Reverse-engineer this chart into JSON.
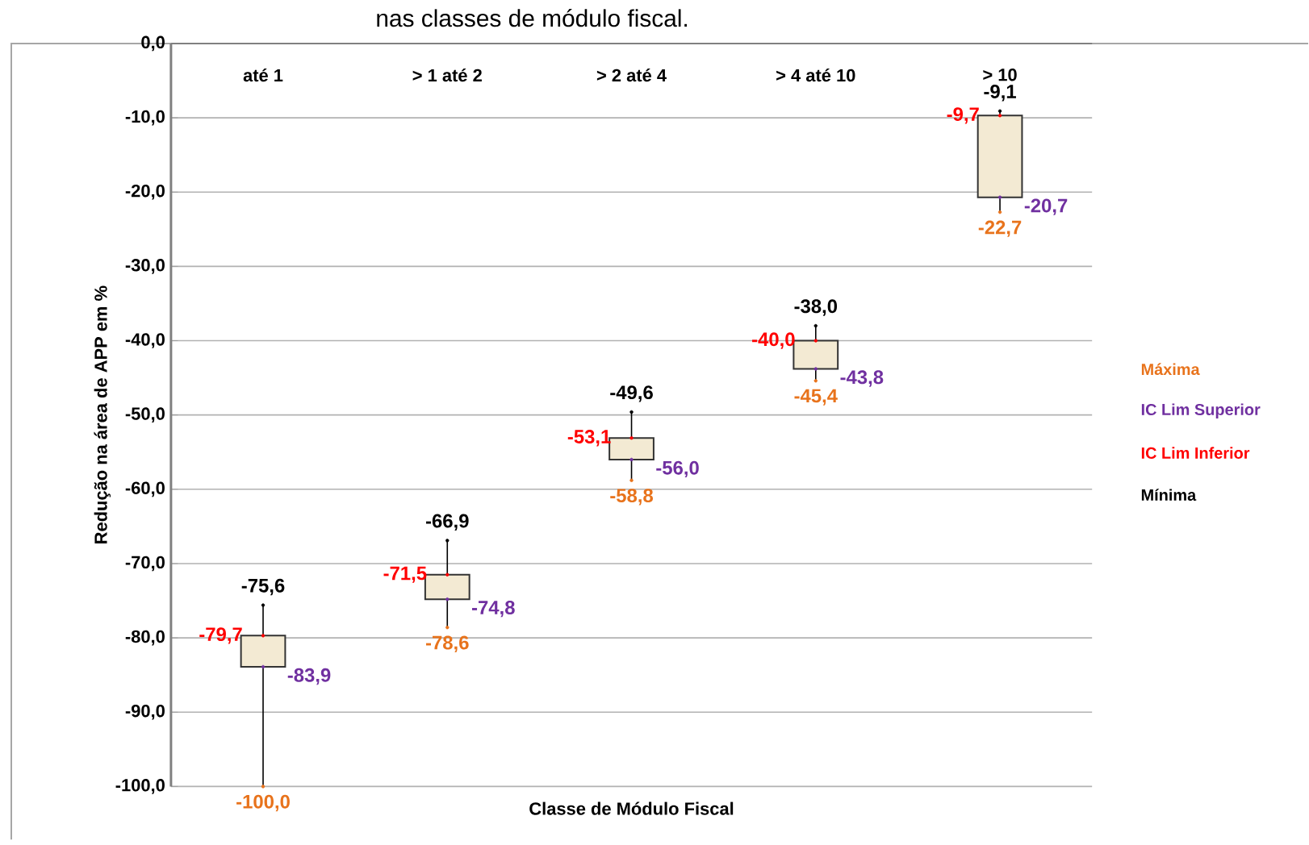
{
  "chart_data": {
    "type": "candlestick",
    "title": "nas classes de módulo fiscal.",
    "xlabel": "Classe de Módulo Fiscal",
    "ylabel": "Redução na área de APP em %",
    "categories": [
      "até 1",
      "> 1 até 2",
      "> 2 até 4",
      "> 4 até 10",
      "> 10"
    ],
    "ohlc": [
      [
        -79.7,
        -75.6,
        -100.0,
        -83.9
      ],
      [
        -71.5,
        -66.9,
        -78.6,
        -74.8
      ],
      [
        -53.1,
        -49.6,
        -58.8,
        -56.0
      ],
      [
        -40.0,
        -38.0,
        -45.4,
        -43.8
      ],
      [
        -9.7,
        -9.1,
        -22.7,
        -20.7
      ]
    ],
    "series": [
      {
        "name": "Máxima",
        "color": "#e8731c",
        "type": "scatter",
        "values": [
          -100.0,
          -78.6,
          -58.8,
          -45.4,
          -22.7
        ],
        "value_labels": [
          "-100,0",
          "-78,6",
          "-58,8",
          "-45,4",
          "-22,7"
        ]
      },
      {
        "name": "IC Lim Superior",
        "color": "#7030a0",
        "type": "scatter",
        "values": [
          -83.9,
          -74.8,
          -56.0,
          -43.8,
          -20.7
        ],
        "value_labels": [
          "-83,9",
          "-74,8",
          "-56,0",
          "-43,8",
          "-20,7"
        ]
      },
      {
        "name": "IC Lim Inferior",
        "color": "#ff0000",
        "type": "scatter",
        "values": [
          -79.7,
          -71.5,
          -53.1,
          -40.0,
          -9.7
        ],
        "value_labels": [
          "-79,7",
          "-71,5",
          "-53,1",
          "-40,0",
          "-9,7"
        ]
      },
      {
        "name": "Mínima",
        "color": "#000000",
        "type": "scatter",
        "values": [
          -75.6,
          -66.9,
          -49.6,
          -38.0,
          -9.1
        ],
        "value_labels": [
          "-75,6",
          "-66,9",
          "-49,6",
          "-38,0",
          "-9,1"
        ]
      }
    ],
    "marker": "circle",
    "grid": "y",
    "ylim": [
      -100,
      0
    ],
    "yticks": [
      {
        "value": -100,
        "label": "-100,0"
      },
      {
        "value": -90,
        "label": "-90,0"
      },
      {
        "value": -80,
        "label": "-80,0"
      },
      {
        "value": -70,
        "label": "-70,0"
      },
      {
        "value": -60,
        "label": "-60,0"
      },
      {
        "value": -50,
        "label": "-50,0"
      },
      {
        "value": -40,
        "label": "-40,0"
      },
      {
        "value": -30,
        "label": "-30,0"
      },
      {
        "value": -20,
        "label": "-20,0"
      },
      {
        "value": -10,
        "label": "-10,0"
      },
      {
        "value": 0,
        "label": "0,0"
      }
    ]
  }
}
